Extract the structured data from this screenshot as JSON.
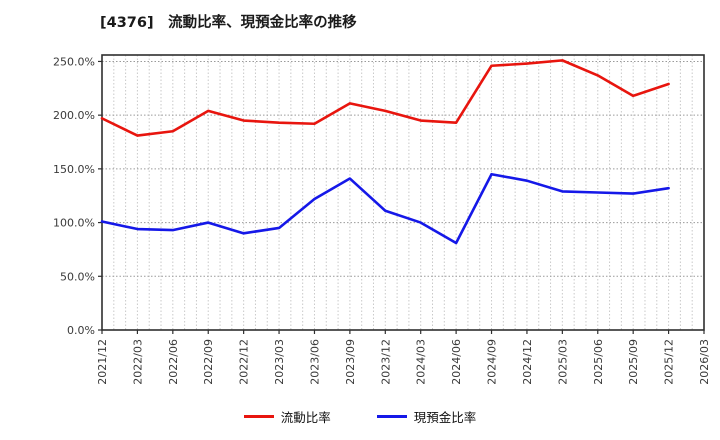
{
  "chart_data": {
    "type": "line",
    "title": "[4376]　流動比率、現預金比率の推移",
    "categories": [
      "2021/12",
      "2022/03",
      "2022/06",
      "2022/09",
      "2022/12",
      "2023/03",
      "2023/06",
      "2023/09",
      "2023/12",
      "2024/03",
      "2024/06",
      "2024/09",
      "2024/12",
      "2025/03",
      "2025/06",
      "2025/09",
      "2025/12",
      "2026/03"
    ],
    "series": [
      {
        "name": "流動比率",
        "color": "#e8150e",
        "values": [
          197,
          181,
          185,
          204,
          195,
          193,
          192,
          211,
          204,
          195,
          193,
          246,
          248,
          251,
          237,
          218,
          229
        ]
      },
      {
        "name": "現預金比率",
        "color": "#1518e8",
        "values": [
          101,
          94,
          93,
          100,
          90,
          95,
          122,
          141,
          111,
          100,
          81,
          145,
          139,
          129,
          128,
          127,
          132
        ]
      }
    ],
    "ylim": [
      0,
      256
    ],
    "yticks": [
      0,
      50,
      100,
      150,
      200,
      250
    ],
    "ytick_labels": [
      "0.0%",
      "50.0%",
      "100.0%",
      "150.0%",
      "200.0%",
      "250.0%"
    ],
    "x_minor_gridlines_per_interval": 3,
    "grid": "dotted gray, horizontal every 50%, vertical monthly",
    "legend_position": "bottom-center",
    "colors": {
      "background": "#ffffff",
      "frame": "#2f2f2f",
      "grid_v": "#c9c9c9",
      "grid_h": "#9a9a9a",
      "tick_text": "#3a3a3a"
    }
  }
}
